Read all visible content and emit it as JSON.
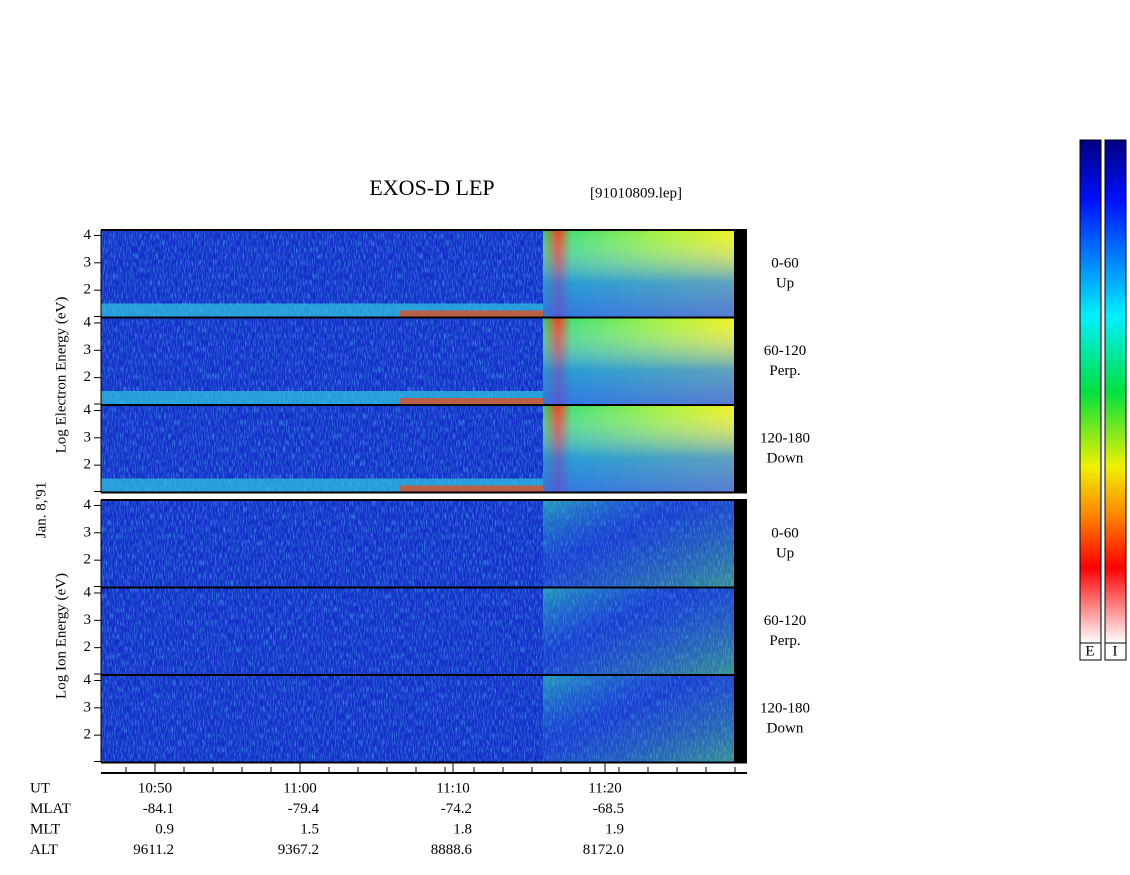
{
  "title": "EXOS-D LEP",
  "file": "[91010809.lep]",
  "date": "Jan. 8,'91",
  "electron_label": "Log Electron Energy (eV)",
  "ion_label": "Log Ion Energy (eV)",
  "energy_axis": {
    "ylim": [
      1,
      4.2
    ],
    "yticks": [
      2,
      3,
      4
    ]
  },
  "panels": [
    {
      "angle": "0-60",
      "direction": "Up"
    },
    {
      "angle": "60-120",
      "direction": "Perp."
    },
    {
      "angle": "120-180",
      "direction": "Down"
    },
    {
      "angle": "0-60",
      "direction": "Up"
    },
    {
      "angle": "60-120",
      "direction": "Perp."
    },
    {
      "angle": "120-180",
      "direction": "Down"
    }
  ],
  "orbit_table": {
    "columns": [
      "10:50",
      "11:00",
      "11:10",
      "11:20"
    ],
    "rows": [
      {
        "name": "UT",
        "cells": []
      },
      {
        "name": "MLAT",
        "cells": [
          "-84.1",
          "-79.4",
          "-74.2",
          "-68.5"
        ]
      },
      {
        "name": "MLT",
        "cells": [
          "0.9",
          "1.5",
          "1.8",
          "1.9"
        ]
      },
      {
        "name": "ALT",
        "cells": [
          "9611.2",
          "9367.2",
          "8888.6",
          "8172.0"
        ]
      }
    ]
  },
  "colorbar_labels": [
    "E",
    "I"
  ]
}
